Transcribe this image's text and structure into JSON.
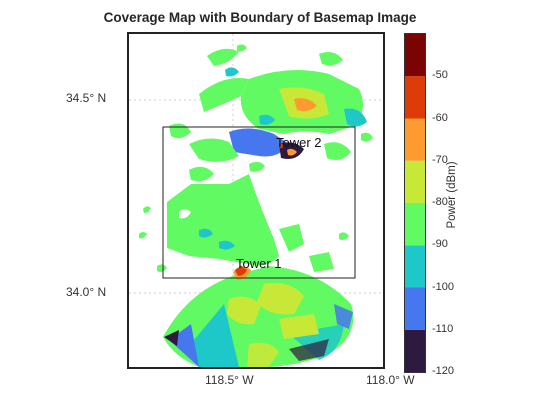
{
  "title": "Coverage Map with Boundary of Basemap Image",
  "axes": {
    "lat_ticks": [
      {
        "label": "34.5°  N",
        "value": 34.5
      },
      {
        "label": "34.0°  N",
        "value": 34.0
      }
    ],
    "lon_ticks": [
      {
        "label": "118.5°  W",
        "value": -118.5
      },
      {
        "label": "118.0°  W",
        "value": -118.0
      }
    ],
    "grid": true
  },
  "towers": [
    {
      "name": "Tower 2"
    },
    {
      "name": "Tower 1"
    }
  ],
  "colorbar": {
    "label": "Power (dBm)",
    "ticks": [
      "-50",
      "-60",
      "-70",
      "-80",
      "-90",
      "-100",
      "-110",
      "-120"
    ],
    "min": -120,
    "max": -40,
    "bands": [
      {
        "from": -120,
        "to": -110,
        "color": "#2e1a40"
      },
      {
        "from": -110,
        "to": -100,
        "color": "#4677ef"
      },
      {
        "from": -100,
        "to": -90,
        "color": "#1fc8c8"
      },
      {
        "from": -90,
        "to": -80,
        "color": "#62fa62"
      },
      {
        "from": -80,
        "to": -70,
        "color": "#c8e838"
      },
      {
        "from": -70,
        "to": -60,
        "color": "#fd9a30"
      },
      {
        "from": -60,
        "to": -50,
        "color": "#dd3b08"
      },
      {
        "from": -50,
        "to": -40,
        "color": "#7a0403"
      }
    ]
  },
  "boundary": "Basemap Image"
}
